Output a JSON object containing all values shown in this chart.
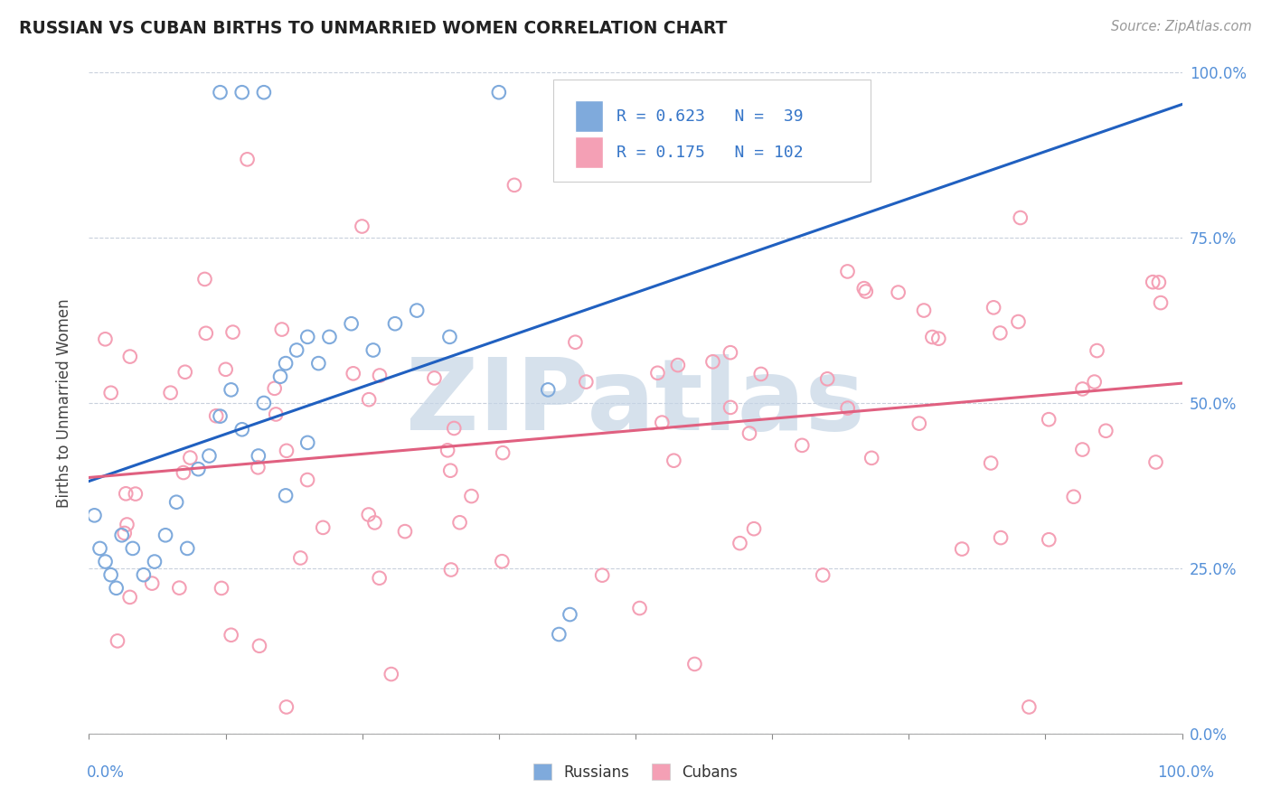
{
  "title": "RUSSIAN VS CUBAN BIRTHS TO UNMARRIED WOMEN CORRELATION CHART",
  "source": "Source: ZipAtlas.com",
  "ylabel": "Births to Unmarried Women",
  "xlim": [
    0.0,
    1.0
  ],
  "ylim": [
    0.0,
    1.0
  ],
  "russian_R": 0.623,
  "russian_N": 39,
  "cuban_R": 0.175,
  "cuban_N": 102,
  "russian_color": "#7faadc",
  "cuban_color": "#f4a0b5",
  "russian_line_color": "#2060c0",
  "cuban_line_color": "#e06080",
  "background_color": "#ffffff",
  "watermark_text": "ZIPatlas",
  "watermark_color": "#c8d8e8",
  "legend_label_russian": "Russians",
  "legend_label_cuban": "Cubans",
  "annotation_color": "#3575c8",
  "grid_color": "#c8d0dc",
  "right_tick_color": "#5590d8"
}
